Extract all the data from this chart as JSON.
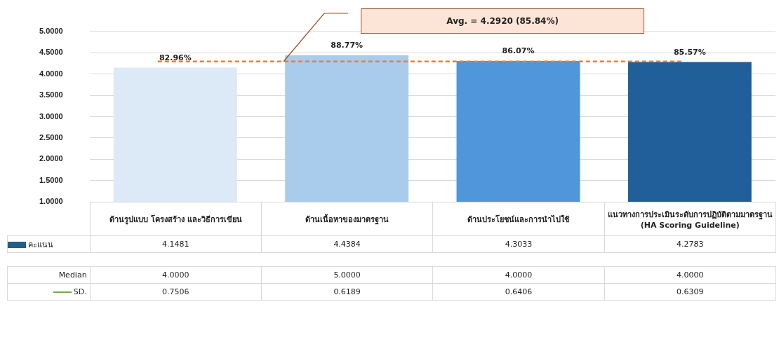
{
  "chart_data": {
    "type": "bar",
    "categories": [
      "ด้านรูปแบบ โครงสร้าง และวิธีการเขียน",
      "ด้านเนื้อหาของมาตรฐาน",
      "ด้านประโยชน์และการนำไปใช้",
      "แนวทางการประเมินระดับการปฏิบัติตามมาตรฐาน\n(HA Scoring Guideline)"
    ],
    "series": [
      {
        "name": "คะแนน",
        "color": "#215f8a",
        "colors": [
          "#dce9f6",
          "#a9cbec",
          "#4f96db",
          "#215f9a"
        ],
        "values": [
          4.1481,
          4.4384,
          4.3033,
          4.2783
        ],
        "value_labels": [
          "4.1481",
          "4.4384",
          "4.3033",
          "4.2783"
        ]
      },
      {
        "name": "Median",
        "type": "other",
        "values": [
          null,
          null,
          null,
          null
        ],
        "value_labels": [
          "4.0000",
          "5.0000",
          "4.0000",
          "4.0000"
        ]
      },
      {
        "name": "SD.",
        "type": "other",
        "color": "#70ad47",
        "values": [
          null,
          null,
          null,
          null
        ],
        "value_labels": [
          "0.7506",
          "0.6189",
          "0.6406",
          "0.6309"
        ]
      }
    ],
    "ylim": [
      1,
      5
    ],
    "yticks": [
      {
        "value": 1,
        "label": "1.0000"
      },
      {
        "value": 1.5,
        "label": "1.5000"
      },
      {
        "value": 2,
        "label": "2.0000"
      },
      {
        "value": 2.5,
        "label": "2.5000"
      },
      {
        "value": 3,
        "label": "3.0000"
      },
      {
        "value": 3.5,
        "label": "3.5000"
      },
      {
        "value": 4,
        "label": "4.0000"
      },
      {
        "value": 4.5,
        "label": "4.5000"
      },
      {
        "value": 5,
        "label": "5.0000"
      }
    ],
    "grid": "y",
    "annotations": [
      {
        "text": "82.96%",
        "x": "ด้านรูปแบบ โครงสร้าง และวิธีการเขียน",
        "y": 4.1481
      },
      {
        "text": "88.77%",
        "x": "ด้านเนื้อหาของมาตรฐาน",
        "y": 4.4384
      },
      {
        "text": "86.07%",
        "x": "ด้านประโยชน์และการนำไปใช้",
        "y": 4.3033
      },
      {
        "text": "85.57%",
        "x": "แนวทางการประเมินระดับการปฏิบัติตามมาตรฐาน\n(HA Scoring Guideline)",
        "y": 4.2783
      },
      "Avg. = 4.2920 (85.84%)"
    ],
    "ref_lines": [
      {
        "axis": "y",
        "value": 4.292,
        "color": "#ed7d31",
        "line_style": "dashed"
      }
    ]
  }
}
